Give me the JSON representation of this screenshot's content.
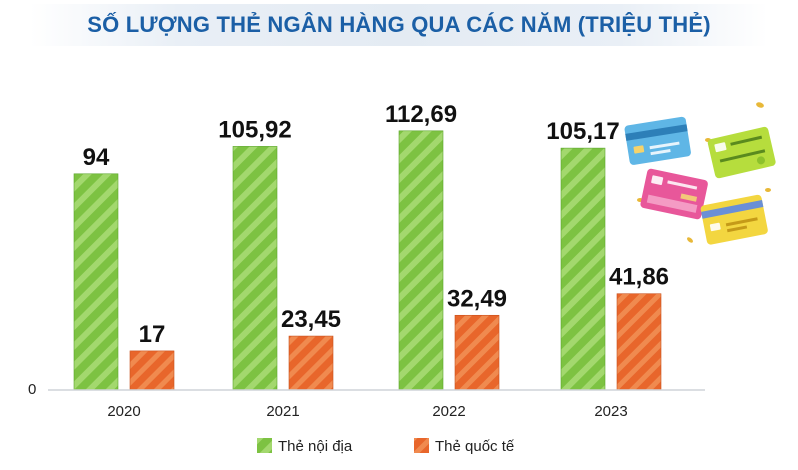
{
  "chart_data": {
    "type": "bar",
    "title": "SỐ LƯỢNG THẺ NGÂN HÀNG QUA CÁC NĂM (TRIỆU THẺ)",
    "categories": [
      "2020",
      "2021",
      "2022",
      "2023"
    ],
    "series": [
      {
        "name": "Thẻ nội địa",
        "values": [
          94,
          105.92,
          112.69,
          105.17
        ],
        "labels": [
          "94",
          "105,92",
          "112,69",
          "105,17"
        ],
        "color": "#7dc242"
      },
      {
        "name": "Thẻ quốc tế",
        "values": [
          17,
          23.45,
          32.49,
          41.86
        ],
        "labels": [
          "17",
          "23,45",
          "32,49",
          "41,86"
        ],
        "color": "#e8662b"
      }
    ],
    "ylim": [
      0,
      120
    ],
    "y_tick_labels": [
      "0"
    ],
    "grid": false,
    "legend_position": "bottom"
  },
  "decoration": {
    "icon": "bank-cards-illustration",
    "card_colors": [
      "#5fb6e6",
      "#e8579a",
      "#b6dd3d",
      "#f3d640"
    ]
  }
}
